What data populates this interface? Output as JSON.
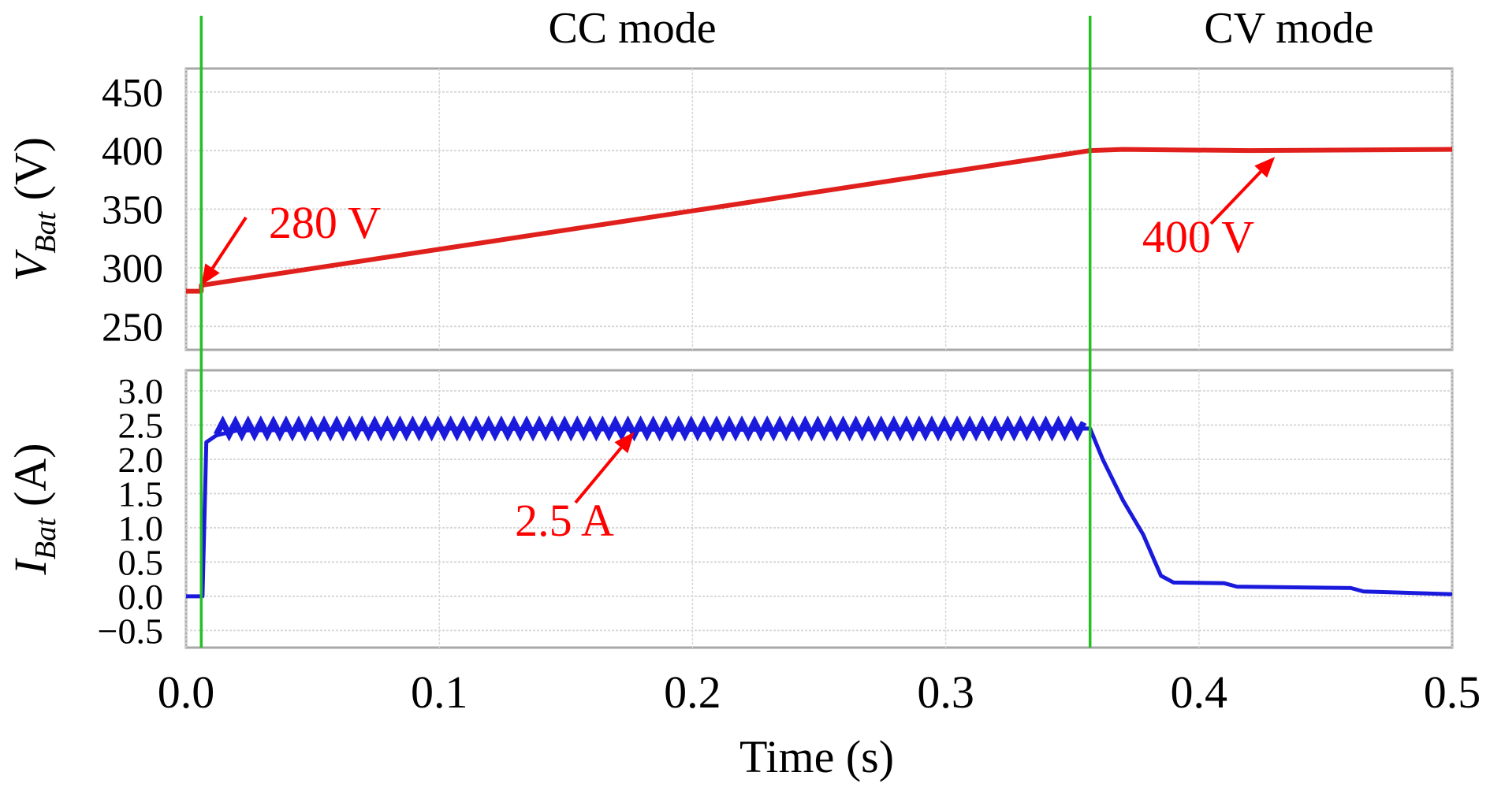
{
  "chart_data": [
    {
      "type": "line",
      "ylabel": "V",
      "ylabel_sub": "Bat",
      "ylabel_unit": "(V)",
      "ylim": [
        230,
        470
      ],
      "yticks": [
        250,
        300,
        350,
        400,
        450
      ],
      "ytick_labels": [
        "250",
        "300",
        "350",
        "400",
        "450"
      ],
      "grid": true,
      "series": [
        {
          "color": "#e0201c",
          "x": [
            0.0,
            0.006,
            0.006,
            0.357,
            0.37,
            0.42,
            0.5
          ],
          "y": [
            280,
            280,
            285,
            400,
            401,
            400,
            401
          ]
        }
      ],
      "annotations": [
        {
          "text": "280 V",
          "color": "#ff0000",
          "target": [
            0.006,
            285
          ]
        },
        {
          "text": "400 V",
          "color": "#ff0000",
          "target": [
            0.43,
            400
          ]
        }
      ]
    },
    {
      "type": "line",
      "ylabel": "I",
      "ylabel_sub": "Bat",
      "ylabel_unit": "(A)",
      "ylim": [
        -0.75,
        3.3
      ],
      "yticks": [
        -0.5,
        0.0,
        0.5,
        1.0,
        1.5,
        2.0,
        2.5,
        3.0
      ],
      "ytick_labels": [
        "−0.5",
        "0.0",
        "0.5",
        "1.0",
        "1.5",
        "2.0",
        "2.5",
        "3.0"
      ],
      "grid": true,
      "series": [
        {
          "color": "#1a1adc",
          "x": [
            0.0,
            0.0065,
            0.008,
            0.012,
            0.02,
            0.1,
            0.2,
            0.3,
            0.357,
            0.362,
            0.37,
            0.378,
            0.385,
            0.39,
            0.41,
            0.415,
            0.46,
            0.465,
            0.5
          ],
          "y": [
            0.0,
            0.0,
            2.25,
            2.35,
            2.42,
            2.45,
            2.43,
            2.44,
            2.45,
            2.0,
            1.4,
            0.9,
            0.3,
            0.2,
            0.19,
            0.14,
            0.12,
            0.07,
            0.03
          ]
        }
      ],
      "annotations": [
        {
          "text": "2.5 A",
          "color": "#ff0000",
          "target": [
            0.177,
            2.4
          ]
        }
      ]
    }
  ],
  "xaxis": {
    "label": "Time (s)",
    "xlim": [
      0.0,
      0.5
    ],
    "ticks": [
      0.0,
      0.1,
      0.2,
      0.3,
      0.4,
      0.5
    ],
    "tick_labels": [
      "0.0",
      "0.1",
      "0.2",
      "0.3",
      "0.4",
      "0.5"
    ]
  },
  "modes": [
    {
      "label": "CC mode",
      "boundary": 0.006
    },
    {
      "label": "CV mode",
      "boundary": 0.357
    }
  ],
  "colors": {
    "mode_line": "#22c022",
    "annotation": "#ff0000",
    "grid": "#d8d8d8",
    "frame": "#a8a8a8"
  }
}
